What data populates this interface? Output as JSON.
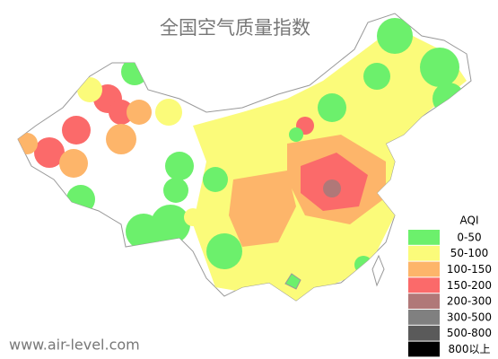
{
  "header": {
    "title": "全国空气质量指数"
  },
  "legend": {
    "title": "AQI",
    "items": [
      {
        "label": "0-50",
        "color": "#6cf06c"
      },
      {
        "label": "50-100",
        "color": "#fbfb7a"
      },
      {
        "label": "100-150",
        "color": "#fdb56a"
      },
      {
        "label": "150-200",
        "color": "#fb6a6a"
      },
      {
        "label": "200-300",
        "color": "#b07878"
      },
      {
        "label": "300-500",
        "color": "#808080"
      },
      {
        "label": "500-800",
        "color": "#5a5a5a"
      },
      {
        "label": "800以上",
        "color": "#000000"
      }
    ]
  },
  "watermark": "www.air-level.com"
}
